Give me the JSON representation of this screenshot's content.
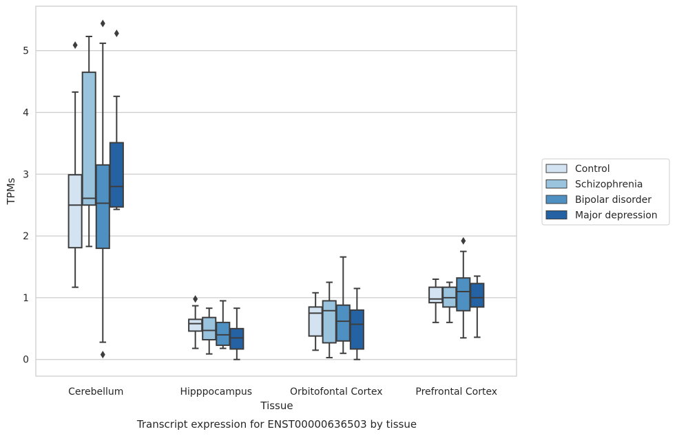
{
  "chart_data": {
    "type": "box",
    "title": "",
    "caption": "Transcript expression for ENST00000636503 by tissue",
    "xlabel": "Tissue",
    "ylabel": "TPMs",
    "ylim": [
      -0.27,
      5.72
    ],
    "yticks": [
      "0",
      "1",
      "2",
      "3",
      "4",
      "5"
    ],
    "grid": "horizontal",
    "legend_position": "right",
    "categories": [
      "Cerebellum",
      "Hipppocampus",
      "Orbitofontal Cortex",
      "Prefrontal Cortex"
    ],
    "series": [
      {
        "name": "Control",
        "color": "#d4e3f2",
        "boxes": [
          {
            "whislo": 1.17,
            "q1": 1.81,
            "med": 2.5,
            "q3": 2.99,
            "whishi": 4.33,
            "fliers": [
              5.09
            ]
          },
          {
            "whislo": 0.18,
            "q1": 0.46,
            "med": 0.58,
            "q3": 0.65,
            "whishi": 0.87,
            "fliers": [
              0.98
            ]
          },
          {
            "whislo": 0.15,
            "q1": 0.38,
            "med": 0.75,
            "q3": 0.85,
            "whishi": 1.08,
            "fliers": []
          },
          {
            "whislo": 0.6,
            "q1": 0.92,
            "med": 0.98,
            "q3": 1.17,
            "whishi": 1.3,
            "fliers": []
          }
        ]
      },
      {
        "name": "Schizophrenia",
        "color": "#9ac4de",
        "boxes": [
          {
            "whislo": 1.83,
            "q1": 2.5,
            "med": 2.61,
            "q3": 4.65,
            "whishi": 5.23,
            "fliers": []
          },
          {
            "whislo": 0.09,
            "q1": 0.32,
            "med": 0.47,
            "q3": 0.68,
            "whishi": 0.83,
            "fliers": []
          },
          {
            "whislo": 0.03,
            "q1": 0.27,
            "med": 0.79,
            "q3": 0.95,
            "whishi": 1.25,
            "fliers": []
          },
          {
            "whislo": 0.6,
            "q1": 0.85,
            "med": 1.0,
            "q3": 1.17,
            "whishi": 1.25,
            "fliers": []
          }
        ]
      },
      {
        "name": "Bipolar disorder",
        "color": "#4f90c2",
        "boxes": [
          {
            "whislo": 0.28,
            "q1": 1.8,
            "med": 2.53,
            "q3": 3.15,
            "whishi": 5.12,
            "fliers": [
              5.44,
              0.08
            ]
          },
          {
            "whislo": 0.18,
            "q1": 0.23,
            "med": 0.4,
            "q3": 0.6,
            "whishi": 0.95,
            "fliers": []
          },
          {
            "whislo": 0.1,
            "q1": 0.3,
            "med": 0.62,
            "q3": 0.88,
            "whishi": 1.66,
            "fliers": []
          },
          {
            "whislo": 0.35,
            "q1": 0.79,
            "med": 1.1,
            "q3": 1.32,
            "whishi": 1.75,
            "fliers": [
              1.92
            ]
          }
        ]
      },
      {
        "name": "Major depression",
        "color": "#2462a4",
        "boxes": [
          {
            "whislo": 2.43,
            "q1": 2.47,
            "med": 2.8,
            "q3": 3.51,
            "whishi": 4.26,
            "fliers": [
              5.28
            ]
          },
          {
            "whislo": 0.0,
            "q1": 0.17,
            "med": 0.35,
            "q3": 0.5,
            "whishi": 0.83,
            "fliers": []
          },
          {
            "whislo": 0.0,
            "q1": 0.17,
            "med": 0.57,
            "q3": 0.8,
            "whishi": 1.15,
            "fliers": []
          },
          {
            "whislo": 0.36,
            "q1": 0.85,
            "med": 1.0,
            "q3": 1.23,
            "whishi": 1.35,
            "fliers": []
          }
        ]
      }
    ]
  }
}
